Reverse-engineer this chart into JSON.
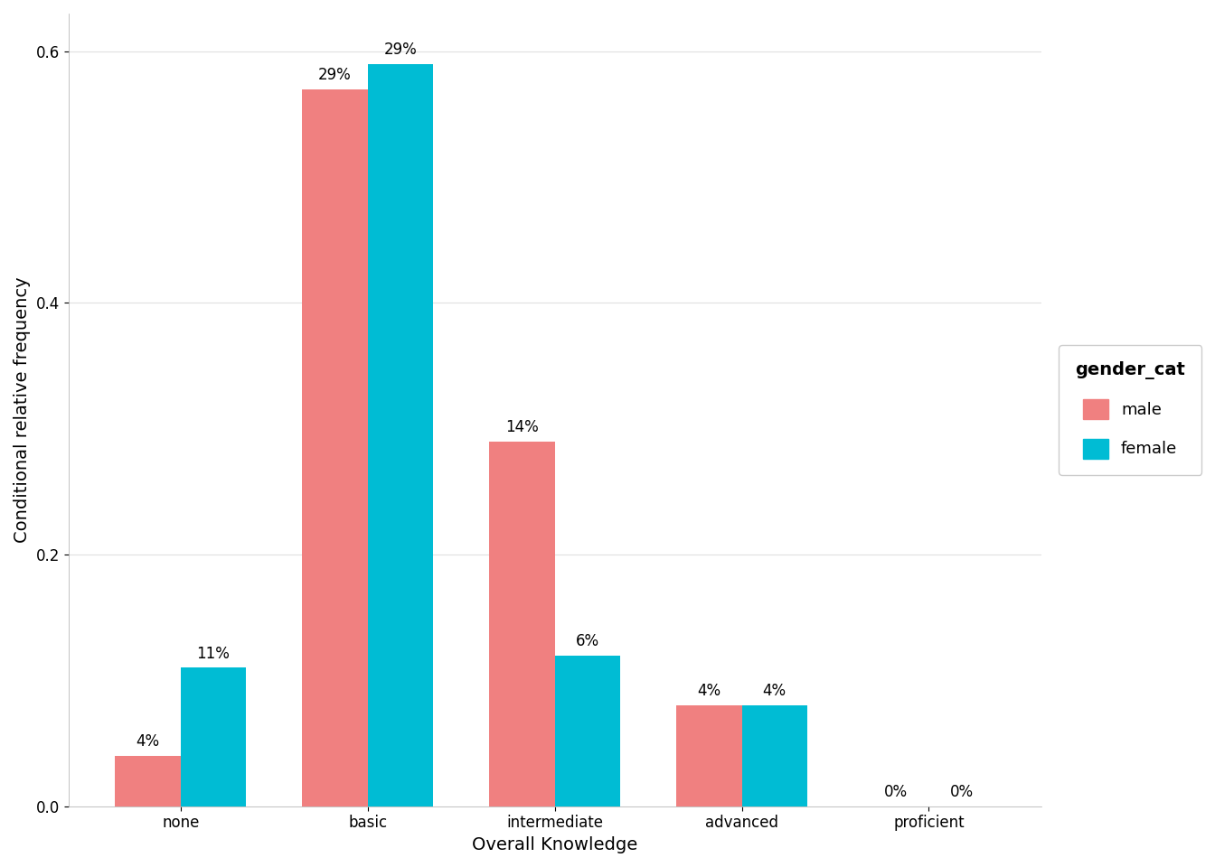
{
  "categories": [
    "none",
    "basic",
    "intermediate",
    "advanced",
    "proficient"
  ],
  "male_values": [
    0.04,
    0.57,
    0.29,
    0.08,
    0.0
  ],
  "female_values": [
    0.11,
    0.59,
    0.12,
    0.08,
    0.0
  ],
  "male_labels": [
    "4%",
    "29%",
    "14%",
    "4%",
    "0%"
  ],
  "female_labels": [
    "11%",
    "29%",
    "6%",
    "4%",
    "0%"
  ],
  "male_color": "#F08080",
  "female_color": "#00BCD4",
  "xlabel": "Overall Knowledge",
  "ylabel": "Conditional relative frequency",
  "ylim": [
    0,
    0.63
  ],
  "yticks": [
    0.0,
    0.2,
    0.4,
    0.6
  ],
  "legend_title": "gender_cat",
  "legend_labels": [
    "male",
    "female"
  ],
  "background_color": "#ffffff",
  "panel_background": "#ffffff",
  "grid_color": "#e0e0e0",
  "bar_width": 0.35,
  "label_fontsize": 12,
  "axis_label_fontsize": 14,
  "tick_fontsize": 12,
  "legend_fontsize": 13,
  "legend_title_fontsize": 14
}
